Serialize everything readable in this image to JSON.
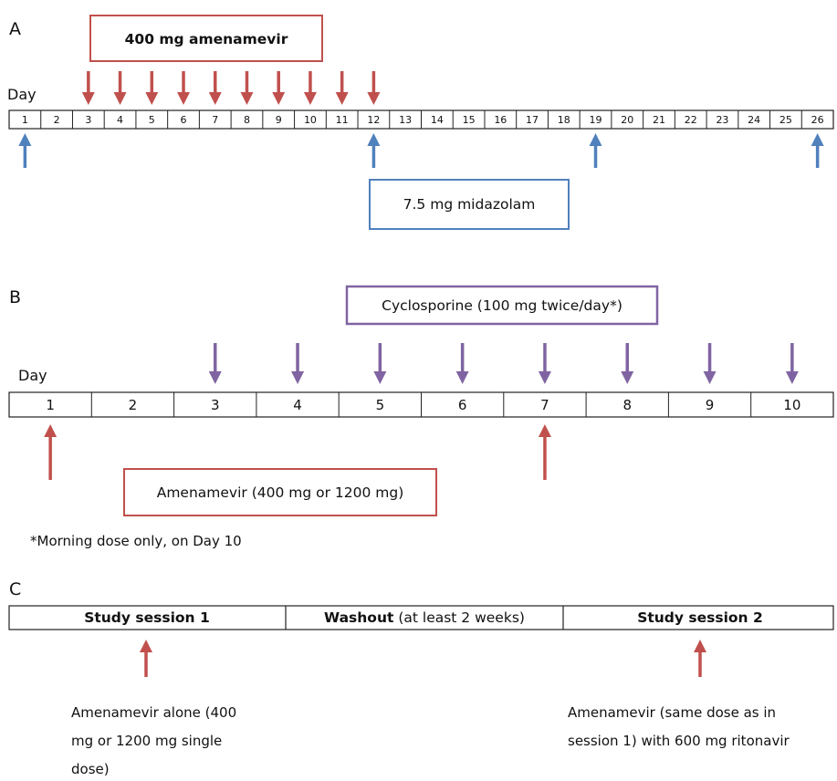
{
  "colors": {
    "red": "#c0504d",
    "blue": "#4f81bd",
    "purple": "#8064a2",
    "outline": "#222222"
  },
  "panel_a": {
    "label": "A",
    "day_label": "Day",
    "days": [
      "1",
      "2",
      "3",
      "4",
      "5",
      "6",
      "7",
      "8",
      "9",
      "10",
      "11",
      "12",
      "13",
      "14",
      "15",
      "16",
      "17",
      "18",
      "19",
      "20",
      "21",
      "22",
      "23",
      "24",
      "25",
      "26"
    ],
    "amenamevir_box": "400 mg amenamevir",
    "amenamevir_days": [
      3,
      4,
      5,
      6,
      7,
      8,
      9,
      10,
      11,
      12
    ],
    "midazolam_box": "7.5 mg midazolam",
    "midazolam_days": [
      1,
      12,
      19,
      26
    ]
  },
  "panel_b": {
    "label": "B",
    "day_label": "Day",
    "days": [
      "1",
      "2",
      "3",
      "4",
      "5",
      "6",
      "7",
      "8",
      "9",
      "10"
    ],
    "cyclosporine_box": "Cyclosporine (100 mg twice/day*)",
    "cyclosporine_days": [
      3,
      4,
      5,
      6,
      7,
      8,
      9,
      10
    ],
    "amenamevir_box": "Amenamevir (400 mg or 1200 mg)",
    "amenamevir_days": [
      1,
      7
    ],
    "footnote": "*Morning dose only, on Day 10"
  },
  "panel_c": {
    "label": "C",
    "session1": "Study session 1",
    "washout_bold": "Washout",
    "washout_rest": " (at least 2 weeks)",
    "session2": "Study session 2",
    "note1_lines": [
      "Amenamevir alone (400",
      "mg or 1200 mg single",
      "dose)"
    ],
    "note2_lines": [
      "Amenamevir (same dose as in",
      "session 1) with 600 mg ritonavir"
    ]
  }
}
